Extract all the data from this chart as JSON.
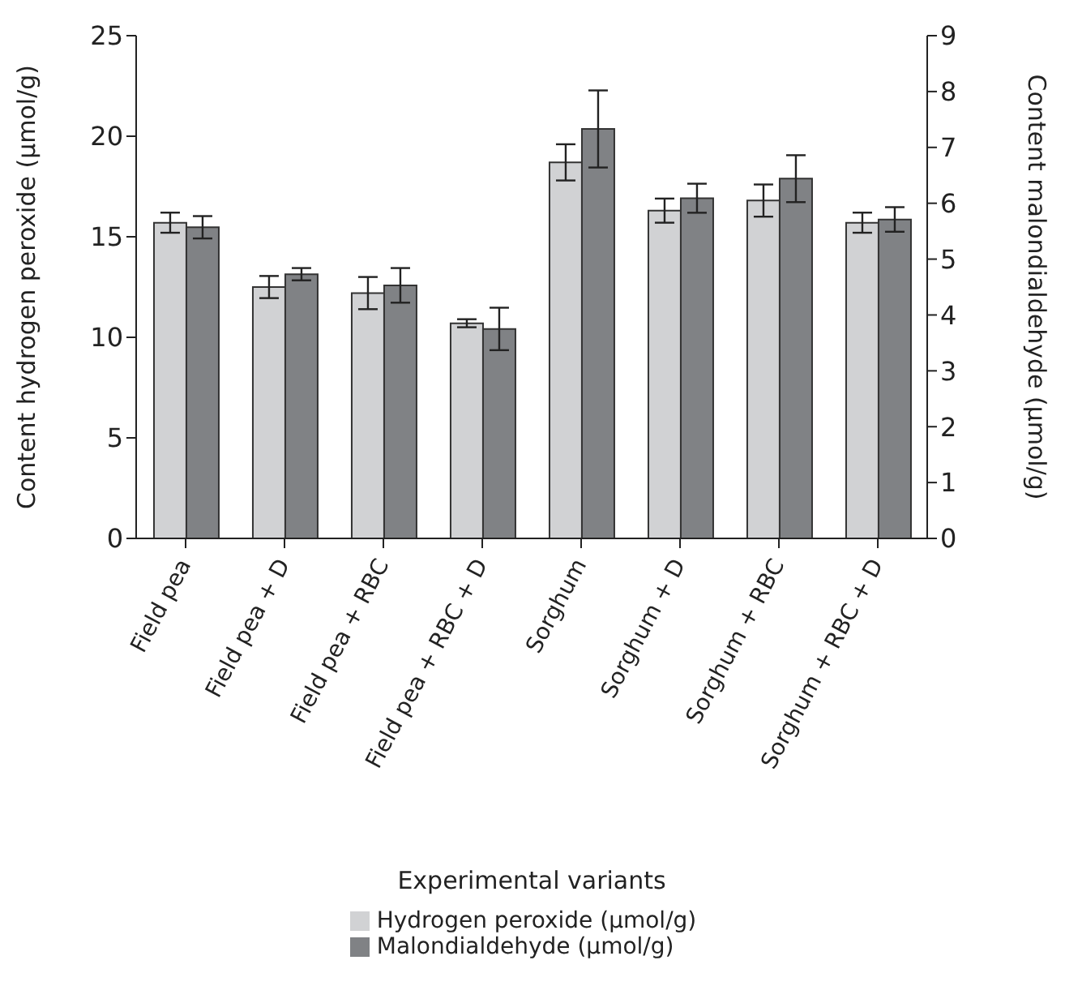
{
  "chart_data": {
    "type": "bar",
    "xlabel": "Experimental variants",
    "ylabel": "Content hydrogen peroxide (µmol/g)",
    "y2label": "Content malondialdehyde (µmol/g)",
    "categories": [
      "Field pea",
      "Field pea + D",
      "Field pea + RBC",
      "Field pea + RBC + D",
      "Sorghum",
      "Sorghum + D",
      "Sorghum + RBC",
      "Sorghum + RBC + D"
    ],
    "series": [
      {
        "name": "Hydrogen peroxide (µmol/g)",
        "color": "#d1d2d4",
        "values": [
          15.7,
          12.5,
          12.2,
          10.7,
          18.7,
          16.3,
          16.8,
          15.7
        ],
        "errors": [
          0.5,
          0.55,
          0.8,
          0.2,
          0.9,
          0.6,
          0.8,
          0.5
        ]
      },
      {
        "name": "Malondialdehyde (µmol/g)",
        "color": "#808285",
        "axis": "y2",
        "values": [
          5.57,
          4.73,
          4.53,
          3.75,
          7.33,
          6.09,
          6.44,
          5.71
        ],
        "errors": [
          0.2,
          0.11,
          0.31,
          0.38,
          0.69,
          0.26,
          0.42,
          0.22
        ]
      }
    ],
    "ylim": [
      0,
      25
    ],
    "yticks": [
      0,
      5,
      10,
      15,
      20,
      25
    ],
    "y2lim": [
      0,
      9
    ],
    "y2ticks": [
      0,
      1,
      2,
      3,
      4,
      5,
      6,
      7,
      8,
      9
    ],
    "grid": false,
    "legend": "bottom"
  }
}
